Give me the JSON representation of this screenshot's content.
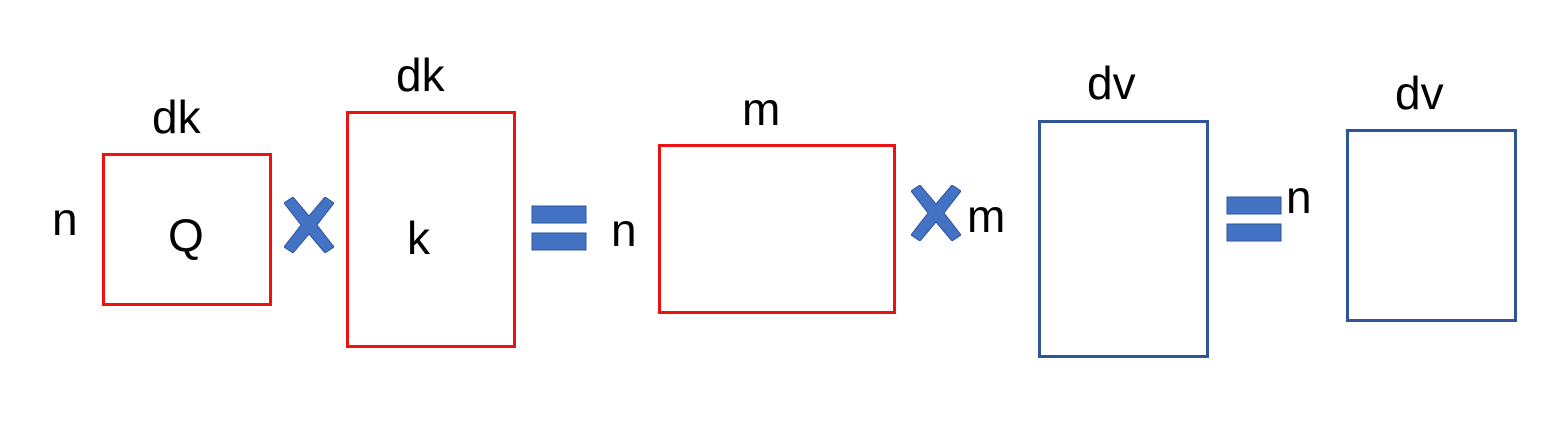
{
  "colors": {
    "red_box": "#ee1111",
    "blue_box": "#2e5597",
    "operator_fill": "#4472c4",
    "operator_stroke": "#2e5597"
  },
  "q_matrix": {
    "row_label": "n",
    "col_label": "dk",
    "name": "Q"
  },
  "k_matrix": {
    "col_label": "dk",
    "name": "k"
  },
  "scores_matrix": {
    "row_label": "n",
    "col_label": "m"
  },
  "v_matrix": {
    "row_label": "m",
    "col_label": "dv"
  },
  "output_matrix": {
    "row_label": "n",
    "col_label": "dv"
  },
  "operators": [
    "multiply-icon",
    "equals-icon",
    "multiply-icon",
    "equals-icon"
  ]
}
